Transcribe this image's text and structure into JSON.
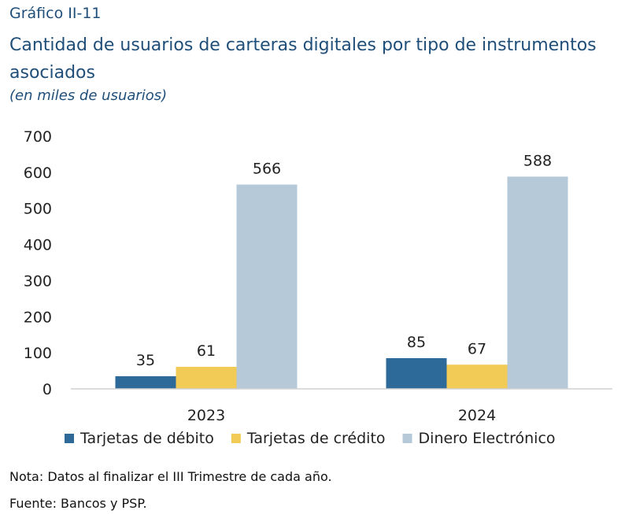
{
  "header": {
    "kicker": "Gráfico II-11",
    "title": "Cantidad de usuarios de carteras digitales por tipo de instrumentos asociados",
    "subtitle": "(en miles de usuarios)"
  },
  "chart_data": {
    "type": "bar",
    "categories": [
      "2023",
      "2024"
    ],
    "series": [
      {
        "name": "Tarjetas de débito",
        "values": [
          35,
          85
        ],
        "color": "#2e6a99"
      },
      {
        "name": "Tarjetas de crédito",
        "values": [
          61,
          67
        ],
        "color": "#f2cb57"
      },
      {
        "name": "Dinero Electrónico",
        "values": [
          566,
          588
        ],
        "color": "#b6c9d9"
      }
    ],
    "ylim": [
      0,
      700
    ],
    "yticks": [
      0,
      100,
      200,
      300,
      400,
      500,
      600,
      700
    ],
    "grid": false,
    "legend": "bottom",
    "data_labels": true
  },
  "footer": {
    "note": "Nota: Datos al finalizar el III Trimestre de cada año.",
    "source": "Fuente: Bancos y PSP."
  }
}
